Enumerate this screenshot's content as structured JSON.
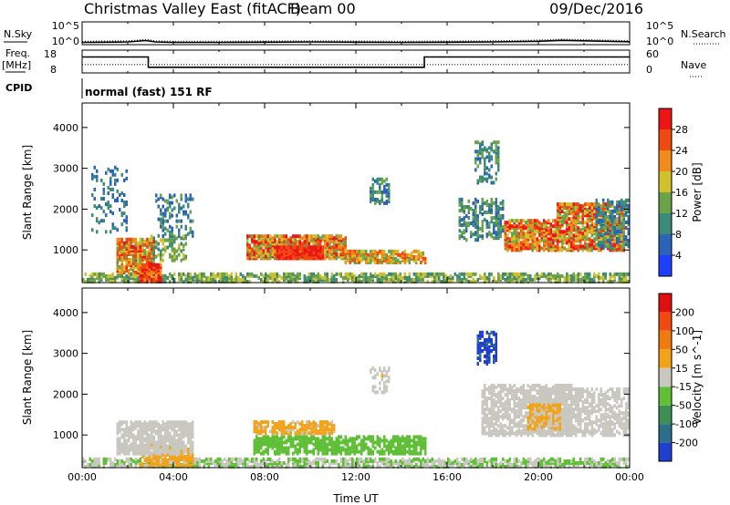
{
  "header": {
    "title": "Christmas Valley East (fitACF)",
    "beam": "Beam 00",
    "date": "09/Dec/2016"
  },
  "chart_data": [
    {
      "type": "line",
      "panel": "noise",
      "left_label": "N.Sky",
      "right_label": "N.Search",
      "left_ticks": [
        "10^5",
        "10^0"
      ],
      "right_ticks": [
        "10^5",
        "10^0"
      ],
      "x_hours": [
        0,
        1,
        2,
        2.8,
        3.2,
        4,
        6,
        8,
        10,
        12,
        14,
        16,
        18,
        20,
        21,
        22,
        23,
        24
      ],
      "n_sky": [
        0.5,
        0.55,
        0.6,
        0.9,
        0.6,
        0.5,
        0.5,
        0.55,
        0.6,
        0.55,
        0.5,
        0.55,
        0.6,
        0.75,
        0.95,
        0.85,
        0.75,
        0.65
      ],
      "n_sky_range": [
        0,
        5
      ]
    },
    {
      "type": "line",
      "panel": "frequency",
      "left_label": "Freq.",
      "left_unit": "[MHz]",
      "right_label": "Nave",
      "left_ticks": [
        18,
        8
      ],
      "right_ticks": [
        60,
        0
      ],
      "freq_steps": [
        {
          "start": 0,
          "end": 2.9,
          "value": 15
        },
        {
          "start": 2.9,
          "end": 15.0,
          "value": 10.5
        },
        {
          "start": 15.0,
          "end": 24,
          "value": 15
        }
      ],
      "freq_range": [
        8,
        18
      ],
      "nave_level": 22,
      "nave_range": [
        0,
        60
      ]
    },
    {
      "type": "table",
      "panel": "cpid",
      "label": "CPID",
      "entries": [
        {
          "start": 0,
          "text": "normal (fast) 151 RF"
        }
      ]
    },
    {
      "type": "heatmap",
      "panel": "power",
      "ylabel": "Slant Range [km]",
      "xlim": [
        0,
        24
      ],
      "ylim": [
        200,
        4600
      ],
      "yticks": [
        1000,
        2000,
        3000,
        4000
      ],
      "colorbar_label": "Power [dB]",
      "colorbar_ticks": [
        "4",
        "8",
        "12",
        "16",
        "20",
        "24",
        "28"
      ],
      "colorbar_colors": [
        "#1f3fff",
        "#2a63b8",
        "#3c8a78",
        "#6aa34a",
        "#cfc22d",
        "#f08c1a",
        "#ef4a12",
        "#ee1515"
      ],
      "clim": [
        0,
        32
      ],
      "features": [
        {
          "t0": 0,
          "t1": 24,
          "r0": 180,
          "r1": 380,
          "lo": 8,
          "hi": 20,
          "density": 0.6
        },
        {
          "t0": 1.5,
          "t1": 3.2,
          "r0": 400,
          "r1": 1250,
          "lo": 12,
          "hi": 30,
          "density": 0.75
        },
        {
          "t0": 2.5,
          "t1": 3.5,
          "r0": 180,
          "r1": 600,
          "lo": 20,
          "hi": 32,
          "density": 0.9
        },
        {
          "t0": 3.0,
          "t1": 4.5,
          "r0": 700,
          "r1": 1300,
          "lo": 8,
          "hi": 20,
          "density": 0.4
        },
        {
          "t0": 3.2,
          "t1": 4.8,
          "r0": 1300,
          "r1": 2300,
          "lo": 4,
          "hi": 14,
          "density": 0.25
        },
        {
          "t0": 0.4,
          "t1": 2.0,
          "r0": 1400,
          "r1": 3000,
          "lo": 4,
          "hi": 12,
          "density": 0.15
        },
        {
          "t0": 7.2,
          "t1": 11.5,
          "r0": 750,
          "r1": 1300,
          "lo": 12,
          "hi": 32,
          "density": 0.75
        },
        {
          "t0": 8.5,
          "t1": 10.5,
          "r0": 750,
          "r1": 1050,
          "lo": 24,
          "hi": 32,
          "density": 0.9
        },
        {
          "t0": 11.5,
          "t1": 15.0,
          "r0": 650,
          "r1": 950,
          "lo": 12,
          "hi": 28,
          "density": 0.65
        },
        {
          "t0": 12.6,
          "t1": 13.4,
          "r0": 2100,
          "r1": 2700,
          "lo": 6,
          "hi": 14,
          "density": 0.4
        },
        {
          "t0": 16.5,
          "t1": 18.5,
          "r0": 1200,
          "r1": 2200,
          "lo": 4,
          "hi": 16,
          "density": 0.35
        },
        {
          "t0": 17.2,
          "t1": 18.3,
          "r0": 2600,
          "r1": 3600,
          "lo": 6,
          "hi": 16,
          "density": 0.3
        },
        {
          "t0": 18.5,
          "t1": 21.0,
          "r0": 950,
          "r1": 1700,
          "lo": 12,
          "hi": 32,
          "density": 0.75
        },
        {
          "t0": 20.8,
          "t1": 23.8,
          "r0": 950,
          "r1": 2100,
          "lo": 12,
          "hi": 32,
          "density": 0.7
        },
        {
          "t0": 22.5,
          "t1": 24,
          "r0": 1000,
          "r1": 2200,
          "lo": 4,
          "hi": 14,
          "density": 0.4
        }
      ]
    },
    {
      "type": "heatmap",
      "panel": "velocity",
      "ylabel": "Slant Range [km]",
      "xlabel": "Time UT",
      "xlim": [
        0,
        24
      ],
      "ylim": [
        200,
        4600
      ],
      "xticks": [
        "00:00",
        "04:00",
        "08:00",
        "12:00",
        "16:00",
        "20:00",
        "00:00"
      ],
      "yticks": [
        1000,
        2000,
        3000,
        4000
      ],
      "colorbar_label": "Velocity [m s^-1]",
      "colorbar_ticks": [
        "200",
        "100",
        "50",
        "15",
        "-15",
        "-50",
        "-100",
        "-200"
      ],
      "colorbar_colors": [
        "#1f3fcf",
        "#2d6f8a",
        "#3f8f55",
        "#5fbf36",
        "#c8c8c0",
        "#f2a31a",
        "#f07a12",
        "#ee4a12",
        "#e01010"
      ],
      "clim": [
        -250,
        250
      ],
      "features": [
        {
          "t0": 0,
          "t1": 24,
          "r0": 180,
          "r1": 380,
          "lo": -50,
          "hi": 0,
          "density": 0.6
        },
        {
          "t0": 2.5,
          "t1": 4.8,
          "r0": 200,
          "r1": 700,
          "lo": 20,
          "hi": 80,
          "density": 0.55
        },
        {
          "t0": 1.5,
          "t1": 4.8,
          "r0": 500,
          "r1": 1300,
          "lo": -15,
          "hi": 15,
          "density": 0.7
        },
        {
          "t0": 7.5,
          "t1": 15.0,
          "r0": 500,
          "r1": 950,
          "lo": -80,
          "hi": -30,
          "density": 0.6
        },
        {
          "t0": 7.5,
          "t1": 11.0,
          "r0": 1000,
          "r1": 1300,
          "lo": 20,
          "hi": 70,
          "density": 0.6
        },
        {
          "t0": 12.6,
          "t1": 13.4,
          "r0": 2000,
          "r1": 2600,
          "lo": -15,
          "hi": 30,
          "density": 0.3
        },
        {
          "t0": 17.3,
          "t1": 18.2,
          "r0": 2700,
          "r1": 3500,
          "lo": -260,
          "hi": -180,
          "density": 0.5
        },
        {
          "t0": 17.5,
          "t1": 21.5,
          "r0": 950,
          "r1": 2200,
          "lo": -15,
          "hi": 15,
          "density": 0.55
        },
        {
          "t0": 20.0,
          "t1": 24,
          "r0": 950,
          "r1": 2100,
          "lo": -15,
          "hi": 15,
          "density": 0.55
        },
        {
          "t0": 19.5,
          "t1": 21.0,
          "r0": 1100,
          "r1": 1700,
          "lo": 20,
          "hi": 70,
          "density": 0.5
        }
      ]
    }
  ]
}
